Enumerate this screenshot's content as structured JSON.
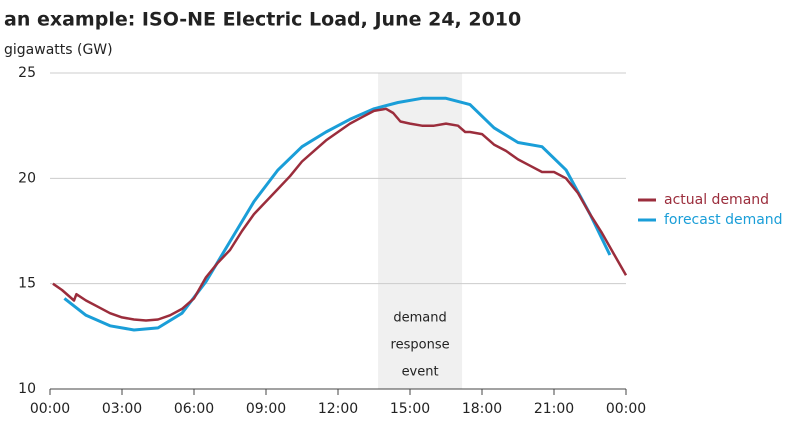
{
  "chart_data": {
    "type": "line",
    "title": "an example: ISO-NE Electric Load, June 24, 2010",
    "y_label": "gigawatts (GW)",
    "xlim": [
      0,
      24
    ],
    "xticks": [
      {
        "value": 0,
        "label": "00:00"
      },
      {
        "value": 3,
        "label": "03:00"
      },
      {
        "value": 6,
        "label": "06:00"
      },
      {
        "value": 9,
        "label": "09:00"
      },
      {
        "value": 12,
        "label": "12:00"
      },
      {
        "value": 15,
        "label": "15:00"
      },
      {
        "value": 18,
        "label": "18:00"
      },
      {
        "value": 21,
        "label": "21:00"
      },
      {
        "value": 24,
        "label": "00:00"
      }
    ],
    "ylim": [
      10,
      25
    ],
    "yticks": [
      10,
      15,
      20,
      25
    ],
    "grid": true,
    "legend": "right",
    "shade": {
      "from": 13.67,
      "to": 17.17,
      "color": "#f0f0f0",
      "label_lines": [
        "demand",
        "response",
        "event"
      ]
    },
    "series": [
      {
        "name": "actual demand",
        "color": "#9b2d3c",
        "x": [
          0.12,
          0.5,
          1.0,
          1.1,
          1.5,
          2,
          2.5,
          3,
          3.5,
          4,
          4.5,
          5,
          5.5,
          6,
          6.5,
          7,
          7.5,
          8,
          8.5,
          9,
          9.5,
          10,
          10.5,
          11,
          11.5,
          12,
          12.5,
          13,
          13.5,
          14,
          14.3,
          14.6,
          15,
          15.5,
          16,
          16.5,
          17,
          17.3,
          17.5,
          18,
          18.5,
          19,
          19.5,
          20,
          20.5,
          21,
          21.5,
          22,
          22.5,
          23,
          23.5,
          24
        ],
        "values": [
          15.0,
          14.7,
          14.2,
          14.5,
          14.2,
          13.9,
          13.6,
          13.4,
          13.3,
          13.25,
          13.3,
          13.5,
          13.8,
          14.3,
          15.3,
          16.0,
          16.6,
          17.5,
          18.3,
          18.9,
          19.5,
          20.1,
          20.8,
          21.3,
          21.8,
          22.2,
          22.6,
          22.9,
          23.2,
          23.3,
          23.1,
          22.7,
          22.6,
          22.5,
          22.5,
          22.6,
          22.5,
          22.2,
          22.2,
          22.1,
          21.6,
          21.3,
          20.9,
          20.6,
          20.3,
          20.3,
          20.0,
          19.3,
          18.3,
          17.4,
          16.4,
          15.4
        ]
      },
      {
        "name": "forecast demand",
        "color": "#1a9ed8",
        "x": [
          0.6,
          1.5,
          2.5,
          3.5,
          4.5,
          5.5,
          6.5,
          7.5,
          8.5,
          9.5,
          10.5,
          11.5,
          12.5,
          13.5,
          14.5,
          15.5,
          16.5,
          17.5,
          18.5,
          19.5,
          20.5,
          21.5,
          22.5,
          23.33
        ],
        "values": [
          14.3,
          13.5,
          13.0,
          12.8,
          12.9,
          13.6,
          15.1,
          17.0,
          18.9,
          20.4,
          21.5,
          22.2,
          22.8,
          23.3,
          23.6,
          23.8,
          23.8,
          23.5,
          22.4,
          21.7,
          21.5,
          20.4,
          18.3,
          16.36
        ]
      }
    ]
  }
}
